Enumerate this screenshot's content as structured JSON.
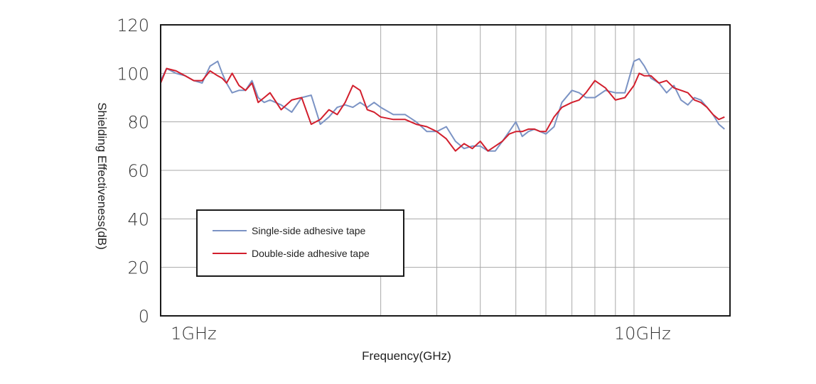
{
  "chart_data": {
    "type": "line",
    "title": "",
    "xlabel": "Frequency(GHz)",
    "ylabel": "Shielding Effectiveness(dB)",
    "x_scale": "log",
    "xlim": [
      0.97,
      18
    ],
    "ylim": [
      0,
      120
    ],
    "y_ticks": [
      {
        "value": 0,
        "label": "0"
      },
      {
        "value": 20,
        "label": "20"
      },
      {
        "value": 40,
        "label": "40"
      },
      {
        "value": 60,
        "label": "60"
      },
      {
        "value": 80,
        "label": "80"
      },
      {
        "value": 100,
        "label": "100"
      },
      {
        "value": 120,
        "label": "120"
      }
    ],
    "x_tick_labels": [
      {
        "value": 1,
        "label": "1GHz"
      },
      {
        "value": 10,
        "label": "10GHz"
      }
    ],
    "x_gridlines": [
      3,
      4,
      5,
      6,
      7,
      8,
      9,
      10,
      11
    ],
    "y_gridlines": [
      20,
      40,
      60,
      80,
      100
    ],
    "legend_position": "lower-left",
    "series": [
      {
        "name": "Single-side adhesive tape",
        "color": "#7b93c4",
        "x": [
          0.97,
          1.0,
          1.05,
          1.1,
          1.15,
          1.2,
          1.25,
          1.3,
          1.33,
          1.36,
          1.4,
          1.45,
          1.5,
          1.55,
          1.6,
          1.65,
          1.7,
          1.8,
          1.9,
          2.0,
          2.1,
          2.2,
          2.3,
          2.4,
          2.5,
          2.6,
          2.7,
          2.8,
          2.9,
          3.0,
          3.2,
          3.4,
          3.6,
          3.8,
          4.0,
          4.2,
          4.4,
          4.6,
          4.8,
          5.0,
          5.2,
          5.4,
          5.6,
          5.8,
          6.0,
          6.2,
          6.4,
          6.6,
          6.8,
          7.0,
          7.3,
          7.6,
          8.0,
          8.3,
          8.6,
          9.0,
          9.5,
          10.0,
          10.5,
          11.0,
          11.3,
          11.6,
          12.0,
          12.5,
          13.0,
          13.5,
          14.0,
          14.5,
          15.0,
          15.5,
          16.0,
          16.5,
          17.0,
          17.5
        ],
        "values": [
          97,
          102,
          100,
          99,
          97,
          96,
          103,
          105,
          100,
          96,
          92,
          93,
          93,
          97,
          90,
          88,
          89,
          87,
          84,
          90,
          91,
          79,
          82,
          86,
          87,
          86,
          88,
          86,
          88,
          86,
          83,
          83,
          80,
          76,
          76,
          78,
          72,
          69,
          70,
          70,
          68,
          68,
          72,
          76,
          80,
          74,
          76,
          77,
          76,
          75,
          78,
          88,
          93,
          92,
          90,
          90,
          93,
          92,
          92,
          105,
          106,
          103,
          98,
          96,
          92,
          95,
          89,
          87,
          90,
          89,
          86,
          83,
          79,
          77
        ]
      },
      {
        "name": "Double-side adhesive tape",
        "color": "#d21f2d",
        "x": [
          0.97,
          1.0,
          1.05,
          1.1,
          1.15,
          1.2,
          1.25,
          1.3,
          1.33,
          1.36,
          1.4,
          1.45,
          1.5,
          1.55,
          1.6,
          1.65,
          1.7,
          1.8,
          1.9,
          2.0,
          2.1,
          2.2,
          2.3,
          2.4,
          2.5,
          2.6,
          2.7,
          2.8,
          2.9,
          3.0,
          3.2,
          3.4,
          3.6,
          3.8,
          4.0,
          4.2,
          4.4,
          4.6,
          4.8,
          5.0,
          5.2,
          5.4,
          5.6,
          5.8,
          6.0,
          6.2,
          6.4,
          6.6,
          6.8,
          7.0,
          7.3,
          7.6,
          8.0,
          8.3,
          8.6,
          9.0,
          9.5,
          10.0,
          10.5,
          11.0,
          11.3,
          11.6,
          12.0,
          12.5,
          13.0,
          13.5,
          14.0,
          14.5,
          15.0,
          15.5,
          16.0,
          16.5,
          17.0,
          17.5
        ],
        "values": [
          96,
          102,
          101,
          99,
          97,
          97,
          101,
          99,
          98,
          96,
          100,
          95,
          93,
          96,
          88,
          90,
          92,
          85,
          89,
          90,
          79,
          81,
          85,
          83,
          88,
          95,
          93,
          85,
          84,
          82,
          81,
          81,
          79,
          78,
          76,
          73,
          68,
          71,
          69,
          72,
          68,
          70,
          72,
          75,
          76,
          76,
          77,
          77,
          76,
          76,
          82,
          86,
          88,
          89,
          92,
          97,
          94,
          89,
          90,
          95,
          100,
          99,
          99,
          96,
          97,
          94,
          93,
          92,
          89,
          88,
          86,
          83,
          81,
          82
        ]
      }
    ]
  }
}
